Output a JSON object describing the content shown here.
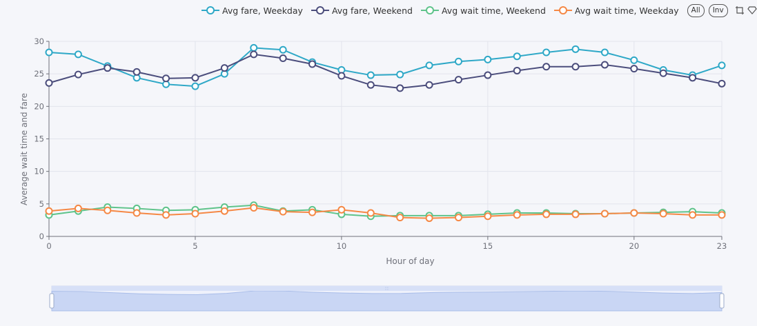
{
  "legend": {
    "toggle_all": "All",
    "toggle_inverse": "Inv"
  },
  "chart_data": {
    "type": "line",
    "xlabel": "Hour of day",
    "ylabel": "Average wait time and  fare",
    "x": [
      0,
      1,
      2,
      3,
      4,
      5,
      6,
      7,
      8,
      9,
      10,
      11,
      12,
      13,
      14,
      15,
      16,
      17,
      18,
      19,
      20,
      21,
      22,
      23
    ],
    "xlim": [
      0,
      23
    ],
    "ylim": [
      0,
      30
    ],
    "x_ticks": [
      "0",
      "5",
      "10",
      "15",
      "20",
      "23"
    ],
    "y_ticks": [
      "0",
      "5",
      "10",
      "15",
      "20",
      "25",
      "30"
    ],
    "grid": true,
    "legend_position": "top",
    "series": [
      {
        "name": "Avg fare, Weekday",
        "color": "#2ea8c7",
        "values": [
          28.3,
          28.0,
          26.2,
          24.4,
          23.4,
          23.1,
          25.0,
          29.0,
          28.7,
          26.8,
          25.6,
          24.8,
          24.9,
          26.3,
          26.9,
          27.2,
          27.7,
          28.3,
          28.8,
          28.3,
          27.1,
          25.6,
          24.8,
          26.3
        ]
      },
      {
        "name": "Avg fare, Weekend",
        "color": "#4b4d7c",
        "values": [
          23.6,
          24.9,
          25.9,
          25.3,
          24.3,
          24.4,
          25.9,
          28.0,
          27.4,
          26.5,
          24.7,
          23.3,
          22.8,
          23.3,
          24.1,
          24.8,
          25.5,
          26.1,
          26.1,
          26.4,
          25.8,
          25.1,
          24.4,
          23.5
        ]
      },
      {
        "name": "Avg wait time, Weekend",
        "color": "#5ec38a",
        "values": [
          3.3,
          3.9,
          4.5,
          4.3,
          4.0,
          4.1,
          4.5,
          4.8,
          3.9,
          4.1,
          3.4,
          3.1,
          3.2,
          3.2,
          3.2,
          3.4,
          3.6,
          3.6,
          3.5,
          3.5,
          3.6,
          3.7,
          3.8,
          3.6
        ]
      },
      {
        "name": "Avg wait time, Weekday",
        "color": "#f58845",
        "values": [
          3.9,
          4.3,
          4.0,
          3.6,
          3.3,
          3.5,
          3.9,
          4.4,
          3.8,
          3.7,
          4.1,
          3.6,
          2.9,
          2.8,
          2.9,
          3.1,
          3.3,
          3.4,
          3.4,
          3.5,
          3.6,
          3.5,
          3.3,
          3.3
        ]
      }
    ]
  },
  "zoom_slider": {
    "start_percent": 0,
    "end_percent": 100,
    "handle_grip": "∷"
  }
}
